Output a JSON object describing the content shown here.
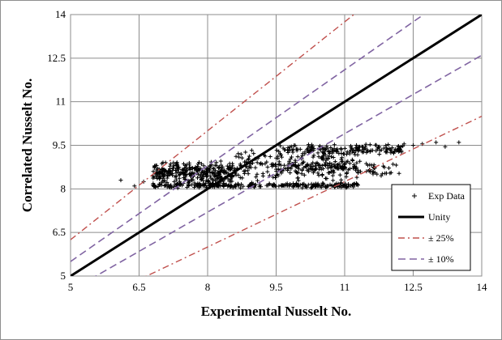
{
  "chart_data": {
    "type": "scatter",
    "xlabel": "Experimental Nusselt No.",
    "ylabel": "Correlated Nusselt No.",
    "xlim": [
      5,
      14
    ],
    "ylim": [
      5,
      14
    ],
    "xticks": [
      "5",
      "6.5",
      "8",
      "9.5",
      "11",
      "12.5",
      "14"
    ],
    "yticks": [
      "5",
      "6.5",
      "8",
      "9.5",
      "11",
      "12.5",
      "14"
    ],
    "grid": true,
    "legend_position": "bottom-right",
    "series": [
      {
        "name": "Exp Data",
        "kind": "scatter",
        "marker": "+",
        "color": "#000000",
        "clusters": [
          {
            "x_range": [
              6.8,
              11.3
            ],
            "y_center": 8.12,
            "y_spread": 0.1,
            "count": 260
          },
          {
            "x_range": [
              6.8,
              8.6
            ],
            "y_center": 8.55,
            "y_spread": 0.45,
            "count": 320
          },
          {
            "x_range": [
              8.6,
              11.3
            ],
            "y_center": 8.8,
            "y_spread": 0.55,
            "count": 220
          },
          {
            "x_range": [
              9.5,
              12.3
            ],
            "y_center": 9.35,
            "y_spread": 0.2,
            "count": 160
          },
          {
            "x_range": [
              9.5,
              12.2
            ],
            "y_center": 8.7,
            "y_spread": 0.3,
            "count": 90
          }
        ],
        "points": [
          [
            6.1,
            8.3
          ],
          [
            6.4,
            8.1
          ],
          [
            6.6,
            8.25
          ],
          [
            12.5,
            9.5
          ],
          [
            12.7,
            9.55
          ],
          [
            13.0,
            9.6
          ],
          [
            13.2,
            9.45
          ],
          [
            13.5,
            9.6
          ],
          [
            12.3,
            9.55
          ]
        ]
      },
      {
        "name": "Unity",
        "kind": "line",
        "slope": 1.0,
        "color": "#000000",
        "dash": "solid",
        "width": 3
      },
      {
        "name": "± 25%",
        "kind": "band",
        "factors": [
          1.25,
          0.75
        ],
        "color": "#c0504d",
        "dash": "dashdot",
        "width": 1.4
      },
      {
        "name": "± 10%",
        "kind": "band",
        "factors": [
          1.1,
          0.9
        ],
        "color": "#8064a2",
        "dash": "dash",
        "width": 1.6
      }
    ]
  }
}
